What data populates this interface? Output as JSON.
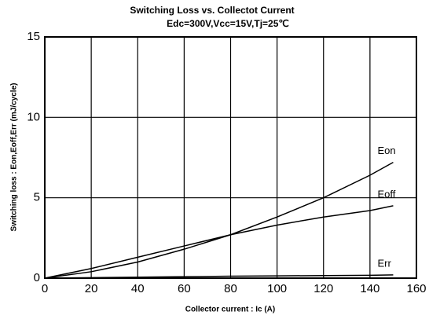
{
  "chart_data": {
    "type": "line",
    "title": "Switching Loss vs. Collectot Current",
    "subtitle": "Edc=300V,Vcc=15V,Tj=25℃",
    "x_label": "Collector current : Ic (A)",
    "y_label": "Switching loss : Eon,Eoff,Err (mJ/cycle)",
    "x": [
      0,
      20,
      40,
      60,
      80,
      100,
      120,
      140,
      150
    ],
    "series": [
      {
        "name": "Eon",
        "color": "#000000",
        "values": [
          0,
          0.4,
          1.0,
          1.8,
          2.7,
          3.8,
          5.0,
          6.4,
          7.2
        ]
      },
      {
        "name": "Eoff",
        "color": "#000000",
        "values": [
          0,
          0.6,
          1.3,
          2.0,
          2.7,
          3.3,
          3.8,
          4.2,
          4.5
        ]
      },
      {
        "name": "Err",
        "color": "#000000",
        "values": [
          0,
          0.03,
          0.06,
          0.09,
          0.12,
          0.14,
          0.16,
          0.18,
          0.2
        ]
      }
    ],
    "xlim": [
      0,
      160
    ],
    "xticks": [
      0,
      20,
      40,
      60,
      80,
      100,
      120,
      140,
      160
    ],
    "ylim": [
      0,
      15
    ],
    "yticks": [
      0,
      5,
      10,
      15
    ],
    "grid": true
  }
}
